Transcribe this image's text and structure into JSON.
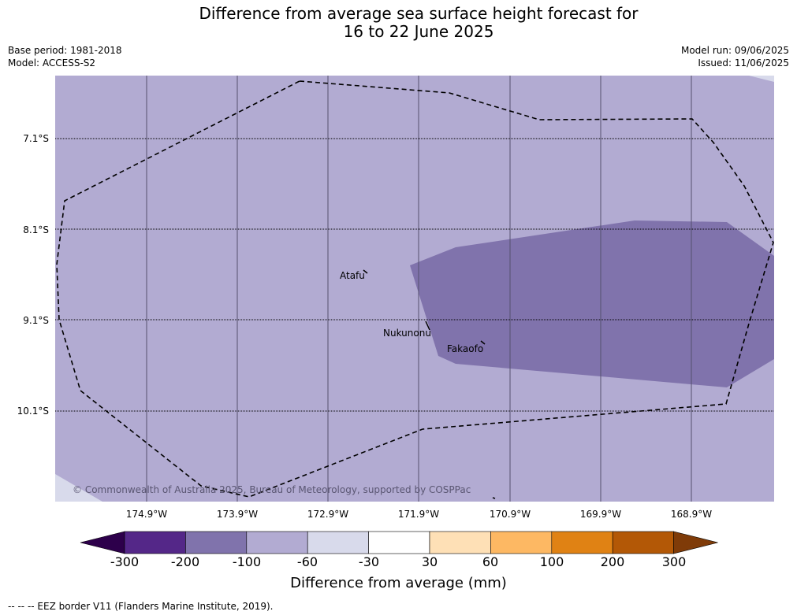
{
  "title_line1": "Difference from average sea surface height forecast for",
  "title_line2": "16 to 22 June 2025",
  "base_period": "Base period: 1981-2018",
  "model": "Model: ACCESS-S2",
  "model_run": "Model run: 09/06/2025",
  "issued": "Issued: 11/06/2025",
  "lat_labels": [
    "7.1°S",
    "8.1°S",
    "9.1°S",
    "10.1°S"
  ],
  "lon_labels": [
    "174.9°W",
    "173.9°W",
    "172.9°W",
    "171.9°W",
    "170.9°W",
    "169.9°W",
    "168.9°W"
  ],
  "places": [
    "Atafu",
    "Nukunonu",
    "Fakaofo"
  ],
  "copyright": "© Commonwealth of Australia 2025, Bureau of Meteorology, supported by COSPPac",
  "colorbar": {
    "title": "Difference from average (mm)",
    "ticks": [
      "-300",
      "-200",
      "-100",
      "-60",
      "-30",
      "30",
      "60",
      "100",
      "200",
      "300"
    ],
    "colors": [
      "#2d004b",
      "#542788",
      "#8073ac",
      "#b2abd2",
      "#d8daeb",
      "#ffffff",
      "#fee0b6",
      "#fdb863",
      "#e08214",
      "#b35806",
      "#7f3b08"
    ]
  },
  "fields": {
    "background_color": "#b2abd2",
    "anomaly_color": "#8073ac",
    "corner_color": "#d8daeb"
  },
  "footnote": "--  --  -- EEZ border V11 (Flanders Marine Institute, 2019)."
}
